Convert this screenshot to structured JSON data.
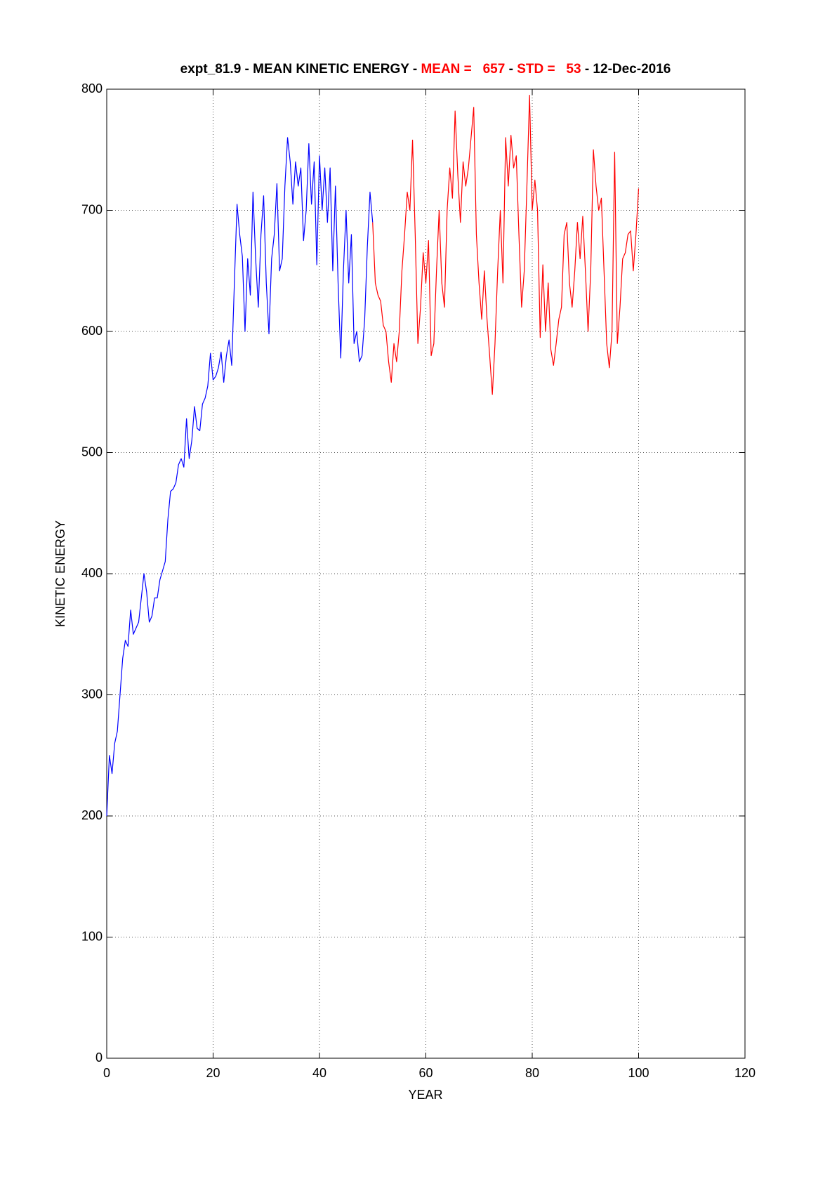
{
  "chart_data": {
    "type": "line",
    "title_parts": [
      {
        "text": "expt_81.9 - MEAN KINETIC ENERGY - ",
        "color": "#000000"
      },
      {
        "text": "MEAN =   657",
        "color": "#ff0000"
      },
      {
        "text": " - ",
        "color": "#000000"
      },
      {
        "text": "STD =   53",
        "color": "#ff0000"
      },
      {
        "text": " - 12-Dec-2016",
        "color": "#000000"
      }
    ],
    "x_label": "YEAR",
    "y_label": "KINETIC ENERGY",
    "xlim": [
      0,
      120
    ],
    "xticks": [
      0,
      20,
      40,
      60,
      80,
      100,
      120
    ],
    "ylim": [
      0,
      800
    ],
    "yticks": [
      0,
      100,
      200,
      300,
      400,
      500,
      600,
      700,
      800
    ],
    "grid": true,
    "series": [
      {
        "color": "#0000ff",
        "x": [
          0,
          0.5,
          1,
          1.5,
          2,
          2.5,
          3,
          3.5,
          4,
          4.5,
          5,
          5.5,
          6,
          6.5,
          7,
          7.5,
          8,
          8.5,
          9,
          9.5,
          10,
          11,
          11.5,
          12,
          12.5,
          13,
          13.5,
          14,
          14.5,
          15,
          15.5,
          16,
          16.5,
          17,
          17.5,
          18,
          18.5,
          19,
          19.5,
          20,
          20.5,
          21,
          21.5,
          22,
          22.5,
          23,
          23.5,
          24,
          24.5,
          25,
          25.5,
          26,
          26.5,
          27,
          27.5,
          28,
          28.5,
          29,
          29.5,
          30,
          30.5,
          31,
          31.5,
          32,
          32.5,
          33,
          33.5,
          34,
          34.5,
          35,
          35.5,
          36,
          36.5,
          37,
          37.5,
          38,
          38.5,
          39,
          39.5,
          40,
          40.5,
          41,
          41.5,
          42,
          42.5,
          43,
          43.5,
          44,
          44.5,
          45,
          45.5,
          46,
          46.5,
          47,
          47.5,
          48,
          48.5,
          49,
          49.5,
          50
        ],
        "values": [
          200,
          250,
          235,
          260,
          270,
          300,
          330,
          345,
          340,
          370,
          350,
          355,
          360,
          380,
          400,
          385,
          360,
          365,
          380,
          380,
          395,
          410,
          445,
          468,
          470,
          475,
          490,
          495,
          488,
          528,
          495,
          510,
          538,
          520,
          518,
          540,
          545,
          555,
          582,
          560,
          563,
          570,
          583,
          558,
          580,
          593,
          572,
          640,
          705,
          680,
          662,
          600,
          660,
          630,
          715,
          660,
          620,
          680,
          712,
          640,
          598,
          660,
          680,
          722,
          650,
          660,
          720,
          760,
          740,
          705,
          740,
          720,
          735,
          675,
          700,
          755,
          705,
          740,
          655,
          745,
          700,
          735,
          690,
          735,
          650,
          720,
          640,
          578,
          650,
          700,
          640,
          680,
          590,
          600,
          575,
          580,
          610,
          670,
          715,
          690
        ]
      },
      {
        "color": "#ff0000",
        "x": [
          50,
          50.5,
          51,
          51.5,
          52,
          52.5,
          53,
          53.5,
          54,
          54.5,
          55,
          55.5,
          56,
          56.5,
          57,
          57.5,
          58,
          58.5,
          59,
          59.5,
          60,
          60.5,
          61,
          61.5,
          62,
          62.5,
          63,
          63.5,
          64,
          64.5,
          65,
          65.5,
          66,
          66.5,
          67,
          67.5,
          68,
          68.5,
          69,
          69.5,
          70,
          70.5,
          71,
          71.5,
          72,
          72.5,
          73,
          73.5,
          74,
          74.5,
          75,
          75.5,
          76,
          76.5,
          77,
          77.5,
          78,
          78.5,
          79,
          79.5,
          80,
          80.5,
          81,
          81.5,
          82,
          82.5,
          83,
          83.5,
          84,
          84.5,
          85,
          85.5,
          86,
          86.5,
          87,
          87.5,
          88,
          88.5,
          89,
          89.5,
          90,
          90.5,
          91,
          91.5,
          92,
          92.5,
          93,
          93.5,
          94,
          94.5,
          95,
          95.5,
          96,
          96.5,
          97,
          97.5,
          98,
          98.5,
          99,
          99.5,
          100
        ],
        "values": [
          690,
          640,
          630,
          625,
          605,
          600,
          575,
          558,
          590,
          575,
          600,
          650,
          680,
          715,
          700,
          758,
          680,
          590,
          620,
          665,
          640,
          675,
          580,
          590,
          650,
          700,
          640,
          620,
          700,
          735,
          710,
          782,
          730,
          690,
          740,
          720,
          735,
          760,
          785,
          680,
          640,
          610,
          650,
          610,
          580,
          548,
          590,
          650,
          700,
          640,
          760,
          720,
          762,
          735,
          745,
          680,
          620,
          650,
          720,
          795,
          700,
          725,
          700,
          595,
          655,
          600,
          640,
          585,
          572,
          590,
          610,
          620,
          680,
          690,
          640,
          620,
          650,
          690,
          660,
          695,
          650,
          600,
          650,
          750,
          720,
          700,
          710,
          650,
          590,
          570,
          600,
          748,
          590,
          620,
          660,
          665,
          680,
          683,
          650,
          680,
          718
        ]
      }
    ]
  }
}
